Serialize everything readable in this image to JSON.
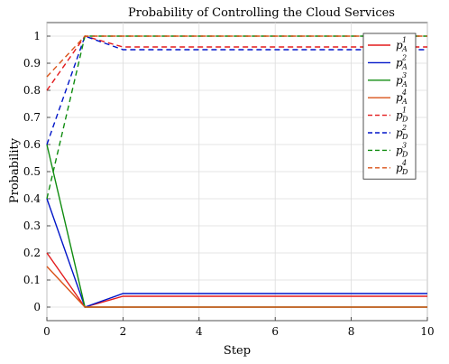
{
  "chart_data": {
    "type": "line",
    "title": "Probability of Controlling the Cloud Services",
    "xlabel": "Step",
    "ylabel": "Probability",
    "xlim": [
      0,
      10
    ],
    "ylim": [
      -0.05,
      1.05
    ],
    "xticks": [
      "0",
      "2",
      "4",
      "6",
      "8",
      "10"
    ],
    "yticks": [
      "0",
      "0.1",
      "0.2",
      "0.3",
      "0.4",
      "0.5",
      "0.6",
      "0.7",
      "0.8",
      "0.9",
      "1"
    ],
    "grid": true,
    "legend_position": "top-right",
    "x": [
      0,
      1,
      2,
      3,
      4,
      5,
      6,
      7,
      8,
      9,
      10
    ],
    "series": [
      {
        "name": "p",
        "sup": "1",
        "sub": "A",
        "color": "#e31a1c",
        "dash": "solid",
        "values": [
          0.2,
          0,
          0.04,
          0.04,
          0.04,
          0.04,
          0.04,
          0.04,
          0.04,
          0.04,
          0.04
        ]
      },
      {
        "name": "p",
        "sup": "2",
        "sub": "A",
        "color": "#0015c8",
        "dash": "solid",
        "values": [
          0.4,
          0,
          0.05,
          0.05,
          0.05,
          0.05,
          0.05,
          0.05,
          0.05,
          0.05,
          0.05
        ]
      },
      {
        "name": "p",
        "sup": "3",
        "sub": "A",
        "color": "#108c10",
        "dash": "solid",
        "values": [
          0.6,
          0,
          0,
          0,
          0,
          0,
          0,
          0,
          0,
          0,
          0
        ]
      },
      {
        "name": "p",
        "sup": "4",
        "sub": "A",
        "color": "#d95319",
        "dash": "solid",
        "values": [
          0.15,
          0,
          0,
          0,
          0,
          0,
          0,
          0,
          0,
          0,
          0
        ]
      },
      {
        "name": "p",
        "sup": "1",
        "sub": "D",
        "color": "#e31a1c",
        "dash": "dashed",
        "values": [
          0.8,
          1,
          0.96,
          0.96,
          0.96,
          0.96,
          0.96,
          0.96,
          0.96,
          0.96,
          0.96
        ]
      },
      {
        "name": "p",
        "sup": "2",
        "sub": "D",
        "color": "#0015c8",
        "dash": "dashed",
        "values": [
          0.6,
          1,
          0.95,
          0.95,
          0.95,
          0.95,
          0.95,
          0.95,
          0.95,
          0.95,
          0.95
        ]
      },
      {
        "name": "p",
        "sup": "3",
        "sub": "D",
        "color": "#108c10",
        "dash": "dashed",
        "values": [
          0.4,
          1,
          1,
          1,
          1,
          1,
          1,
          1,
          1,
          1,
          1
        ]
      },
      {
        "name": "p",
        "sup": "4",
        "sub": "D",
        "color": "#d95319",
        "dash": "dashed",
        "values": [
          0.85,
          1,
          1,
          1,
          1,
          1,
          1,
          1,
          1,
          1,
          1
        ]
      }
    ]
  }
}
